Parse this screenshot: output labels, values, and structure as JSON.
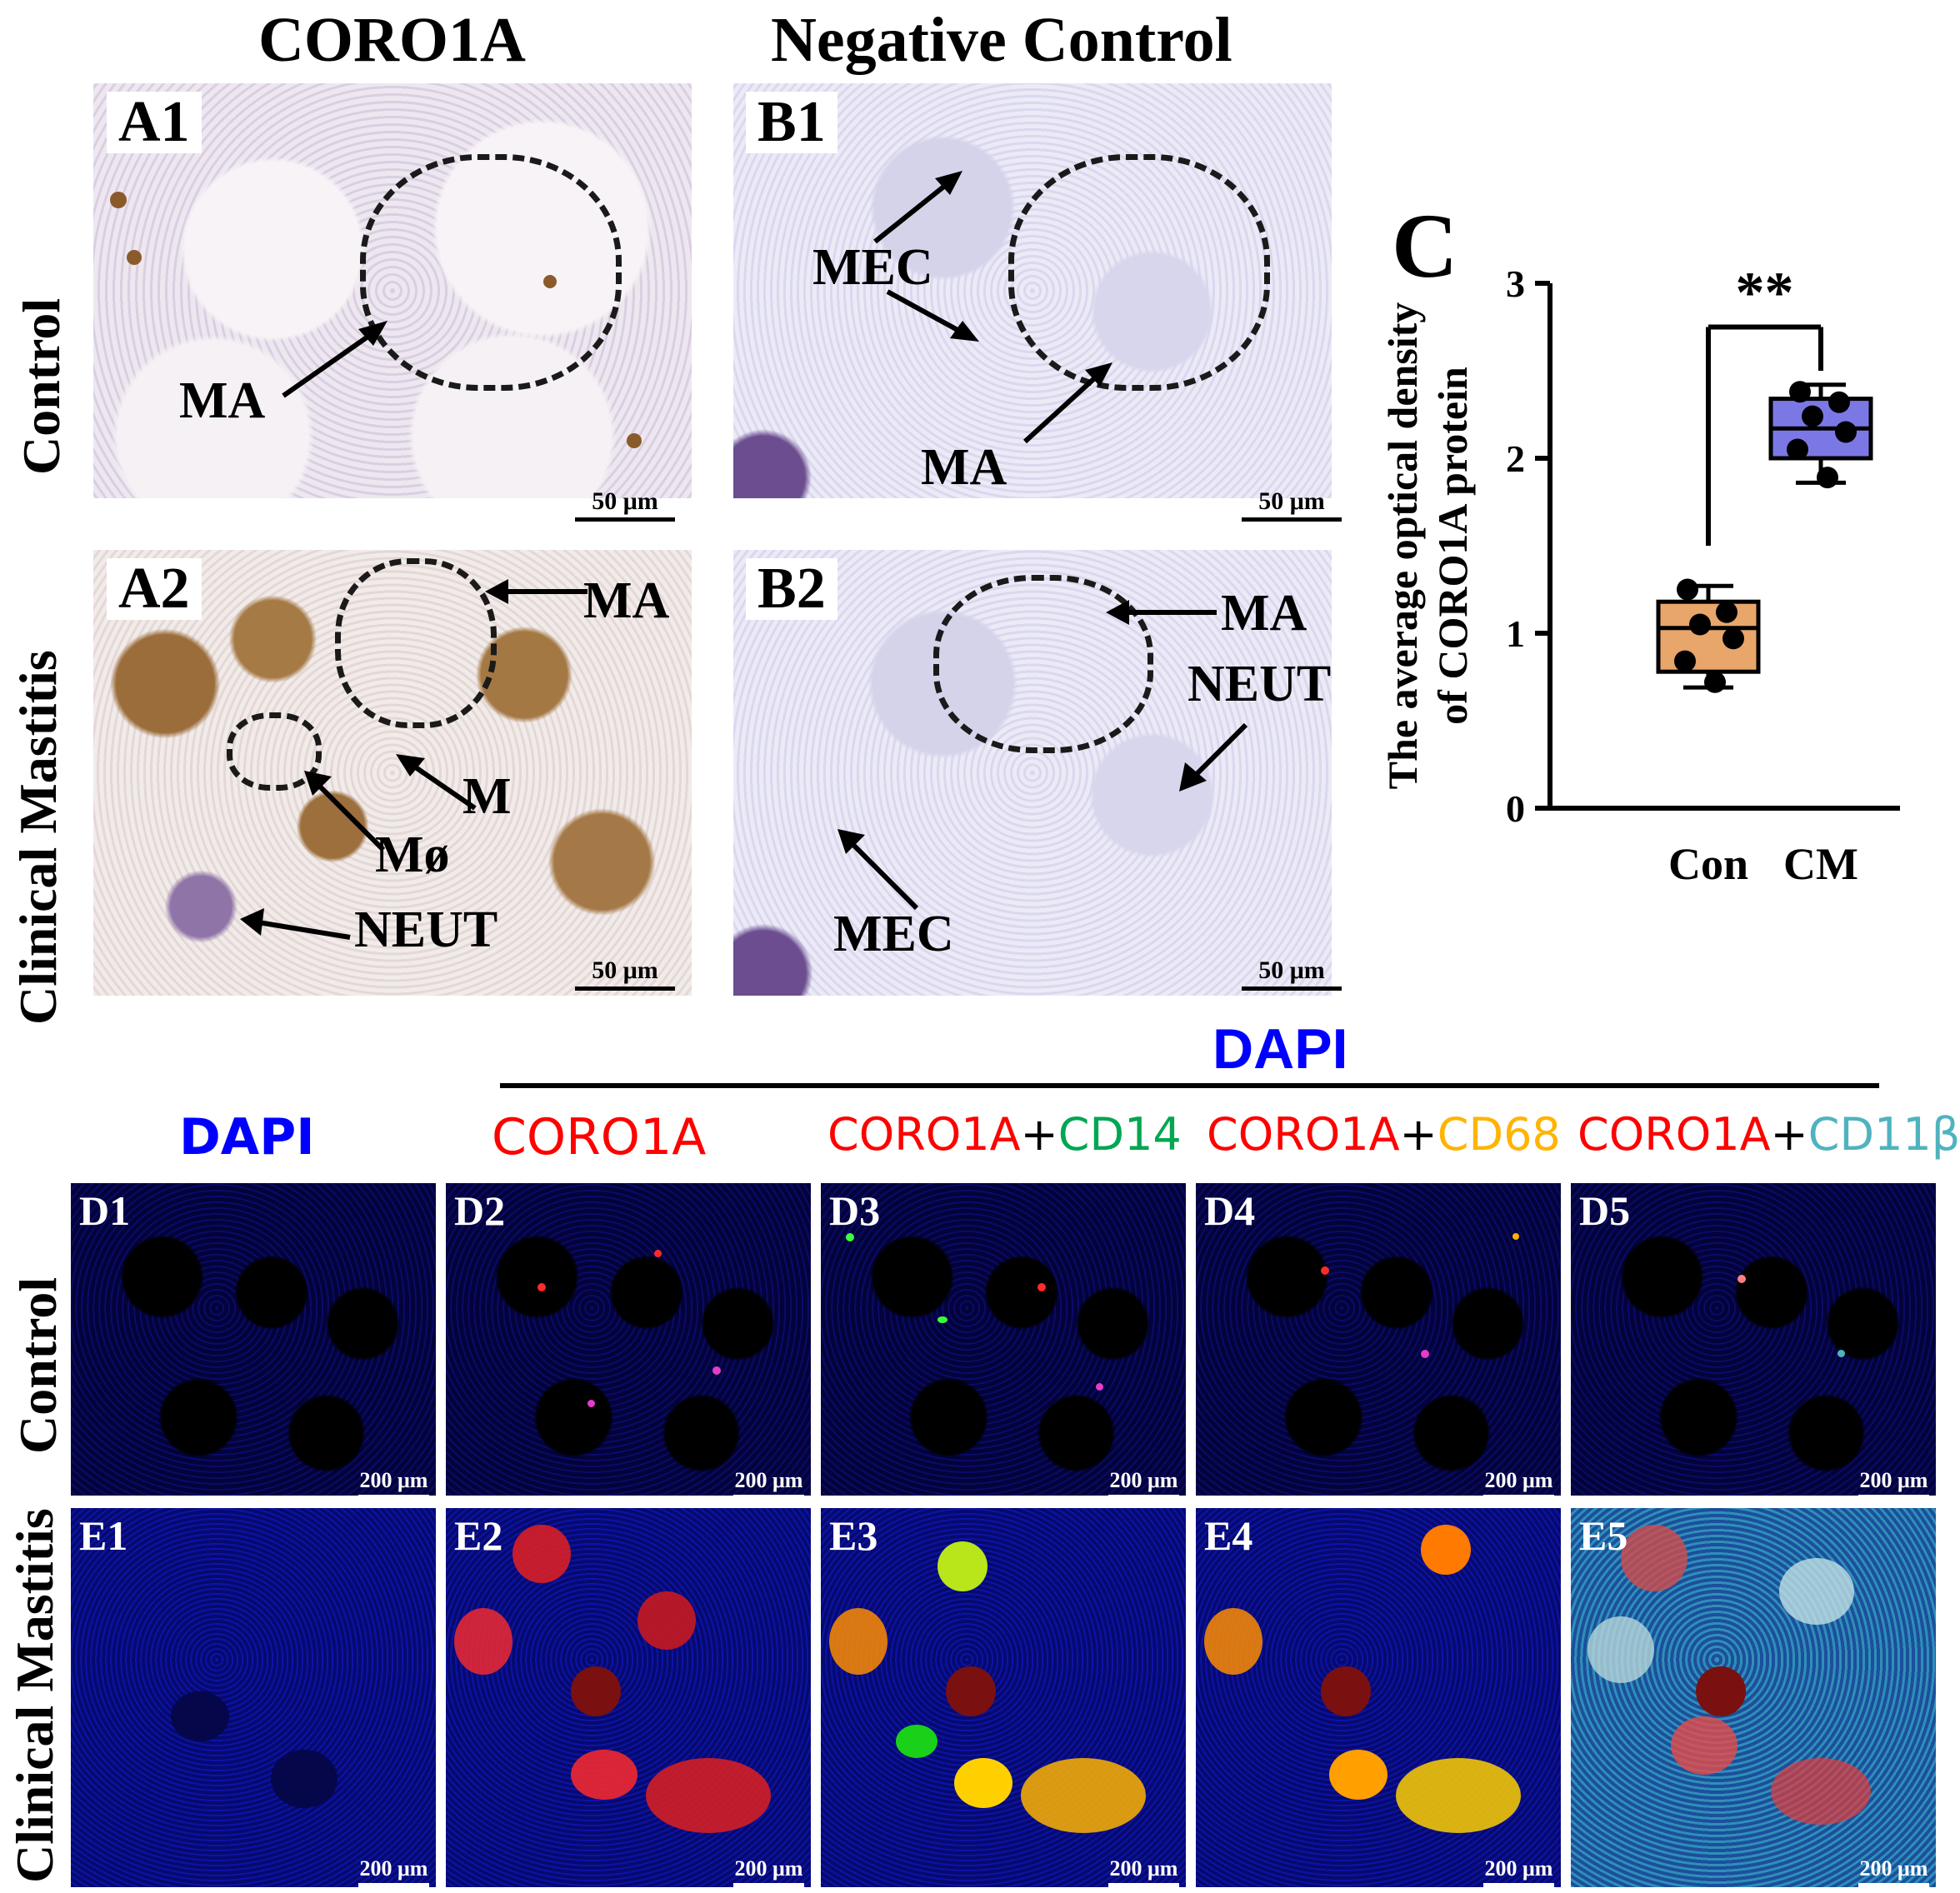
{
  "headers": {
    "col_a": "CORO1A",
    "col_b": "Negative Control",
    "dapi_span": "DAPI",
    "if_dapi": "DAPI",
    "if_coro1a": "CORO1A",
    "if_d3_a": "CORO1A",
    "if_d3_plus": "+",
    "if_d3_b": "CD14",
    "if_d4_a": "CORO1A",
    "if_d4_plus": "+",
    "if_d4_b": "CD68",
    "if_d5_a": "CORO1A",
    "if_d5_plus": "+",
    "if_d5_b": "CD11β"
  },
  "row_labels": {
    "top_control": "Control",
    "top_cm": "Clinical Mastitis",
    "bottom_control": "Control",
    "bottom_cm": "Clinical Mastitis"
  },
  "panels": {
    "A1": "A1",
    "A2": "A2",
    "B1": "B1",
    "B2": "B2",
    "C": "C",
    "D1": "D1",
    "D2": "D2",
    "D3": "D3",
    "D4": "D4",
    "D5": "D5",
    "E1": "E1",
    "E2": "E2",
    "E3": "E3",
    "E4": "E4",
    "E5": "E5"
  },
  "annotations": {
    "a1_ma": "MA",
    "a2_ma": "MA",
    "a2_m": "M",
    "a2_mo": "Mø",
    "a2_neut": "NEUT",
    "b1_mec": "MEC",
    "b1_ma": "MA",
    "b2_ma": "MA",
    "b2_neut": "NEUT",
    "b2_mec": "MEC"
  },
  "scale_bars": {
    "ihc": "50 μm",
    "if": "200 μm"
  },
  "colors": {
    "dapi": "#0000ff",
    "coro1a": "#ff0000",
    "cd14": "#00a651",
    "cd68": "#ffb400",
    "cd11b": "#4fb3bf",
    "con_box": "#e8a66a",
    "cm_box": "#7b78e6"
  },
  "chart_data": {
    "type": "box",
    "ylabel": "The average optical density of CORO1A protein",
    "categories": [
      "Con",
      "CM"
    ],
    "ylim": [
      0,
      3
    ],
    "yticks": [
      0,
      1,
      2,
      3
    ],
    "significance": "**",
    "series": [
      {
        "category": "Con",
        "q1": 0.78,
        "median": 1.03,
        "q3": 1.18,
        "min": 0.69,
        "max": 1.27,
        "points": [
          1.25,
          1.12,
          1.05,
          0.97,
          0.84,
          0.72
        ]
      },
      {
        "category": "CM",
        "q1": 2.0,
        "median": 2.17,
        "q3": 2.34,
        "min": 1.86,
        "max": 2.42,
        "points": [
          2.38,
          2.32,
          2.24,
          2.15,
          2.05,
          1.89
        ]
      }
    ]
  }
}
